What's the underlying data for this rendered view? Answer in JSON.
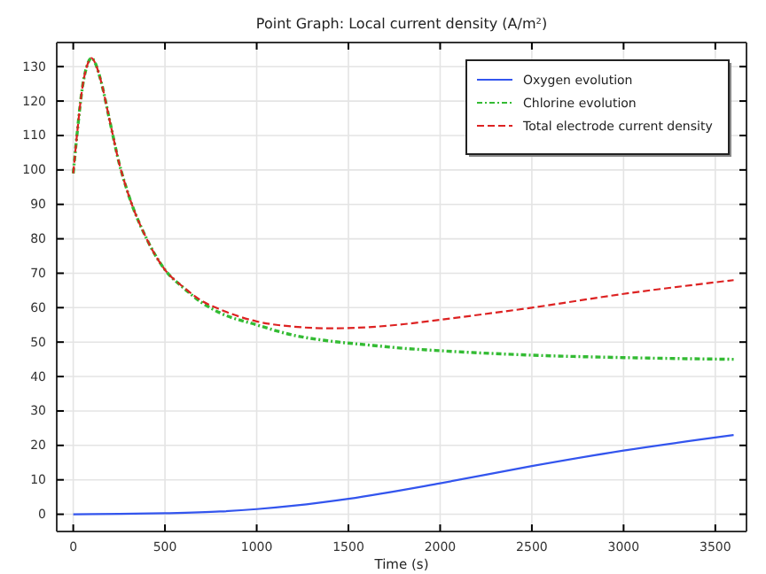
{
  "chart_data": {
    "type": "line",
    "title": "Point Graph: Local current density (A/m²)",
    "xlabel": "Time (s)",
    "xlim": [
      -90,
      3670
    ],
    "ylim": [
      -5,
      137
    ],
    "xticks": [
      0,
      500,
      1000,
      1500,
      2000,
      2500,
      3000,
      3500
    ],
    "yticks": [
      0,
      10,
      20,
      30,
      40,
      50,
      60,
      70,
      80,
      90,
      100,
      110,
      120,
      130
    ],
    "grid": true,
    "legend": "top right",
    "series": [
      {
        "name": "Oxygen evolution",
        "color": "#3355ee",
        "line_style": "solid",
        "x": [
          0,
          250,
          500,
          800,
          1000,
          1200,
          1500,
          2000,
          2500,
          3000,
          3600
        ],
        "values": [
          0,
          0.1,
          0.3,
          0.8,
          1.5,
          2.5,
          4.5,
          9,
          14,
          18.5,
          23
        ]
      },
      {
        "name": "Chlorine evolution",
        "color": "#33bb33",
        "line_style": "dashdot",
        "x": [
          0,
          20,
          50,
          80,
          100,
          120,
          150,
          200,
          250,
          300,
          400,
          500,
          600,
          700,
          800,
          1000,
          1200,
          1400,
          1600,
          1800,
          2000,
          2500,
          3000,
          3600
        ],
        "values": [
          99,
          110,
          124,
          131,
          132.5,
          131,
          126,
          114,
          102,
          93,
          80,
          71,
          65.8,
          61.5,
          58.5,
          55,
          52,
          50.3,
          49.2,
          48.2,
          47.5,
          46.2,
          45.5,
          45
        ]
      },
      {
        "name": "Total electrode current density",
        "color": "#dd2222",
        "line_style": "dashed",
        "x": [
          0,
          20,
          50,
          80,
          100,
          120,
          150,
          200,
          250,
          300,
          400,
          500,
          600,
          700,
          800,
          1000,
          1200,
          1400,
          1600,
          1800,
          2000,
          2500,
          3000,
          3600
        ],
        "values": [
          99,
          110,
          124,
          131,
          132.5,
          131,
          126,
          114,
          102,
          93,
          80,
          71,
          66,
          62,
          59.5,
          56,
          54.5,
          54,
          54.3,
          55.2,
          56.5,
          60,
          64,
          68
        ]
      }
    ]
  }
}
